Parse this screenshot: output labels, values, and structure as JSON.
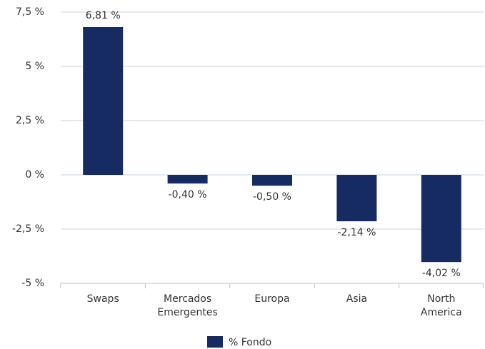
{
  "chart_data": {
    "type": "bar",
    "categories": [
      "Swaps",
      "Mercados Emergentes",
      "Europa",
      "Asia",
      "North America"
    ],
    "series": [
      {
        "name": "% Fondo",
        "color": "#152b61",
        "values": [
          6.81,
          -0.4,
          -0.5,
          -2.14,
          -4.02
        ],
        "value_labels": [
          "6,81 %",
          "-0,40 %",
          "-0,50 %",
          "-2,14 %",
          "-4,02 %"
        ]
      }
    ],
    "ylim": [
      -5,
      7.5
    ],
    "yticks": [
      {
        "value": -5,
        "label": "-5 %"
      },
      {
        "value": -2.5,
        "label": "-2,5 %"
      },
      {
        "value": 0,
        "label": "0 %"
      },
      {
        "value": 2.5,
        "label": "2,5 %"
      },
      {
        "value": 5,
        "label": "5 %"
      },
      {
        "value": 7.5,
        "label": "7,5 %"
      }
    ],
    "grid": true,
    "legend": "bottom"
  }
}
